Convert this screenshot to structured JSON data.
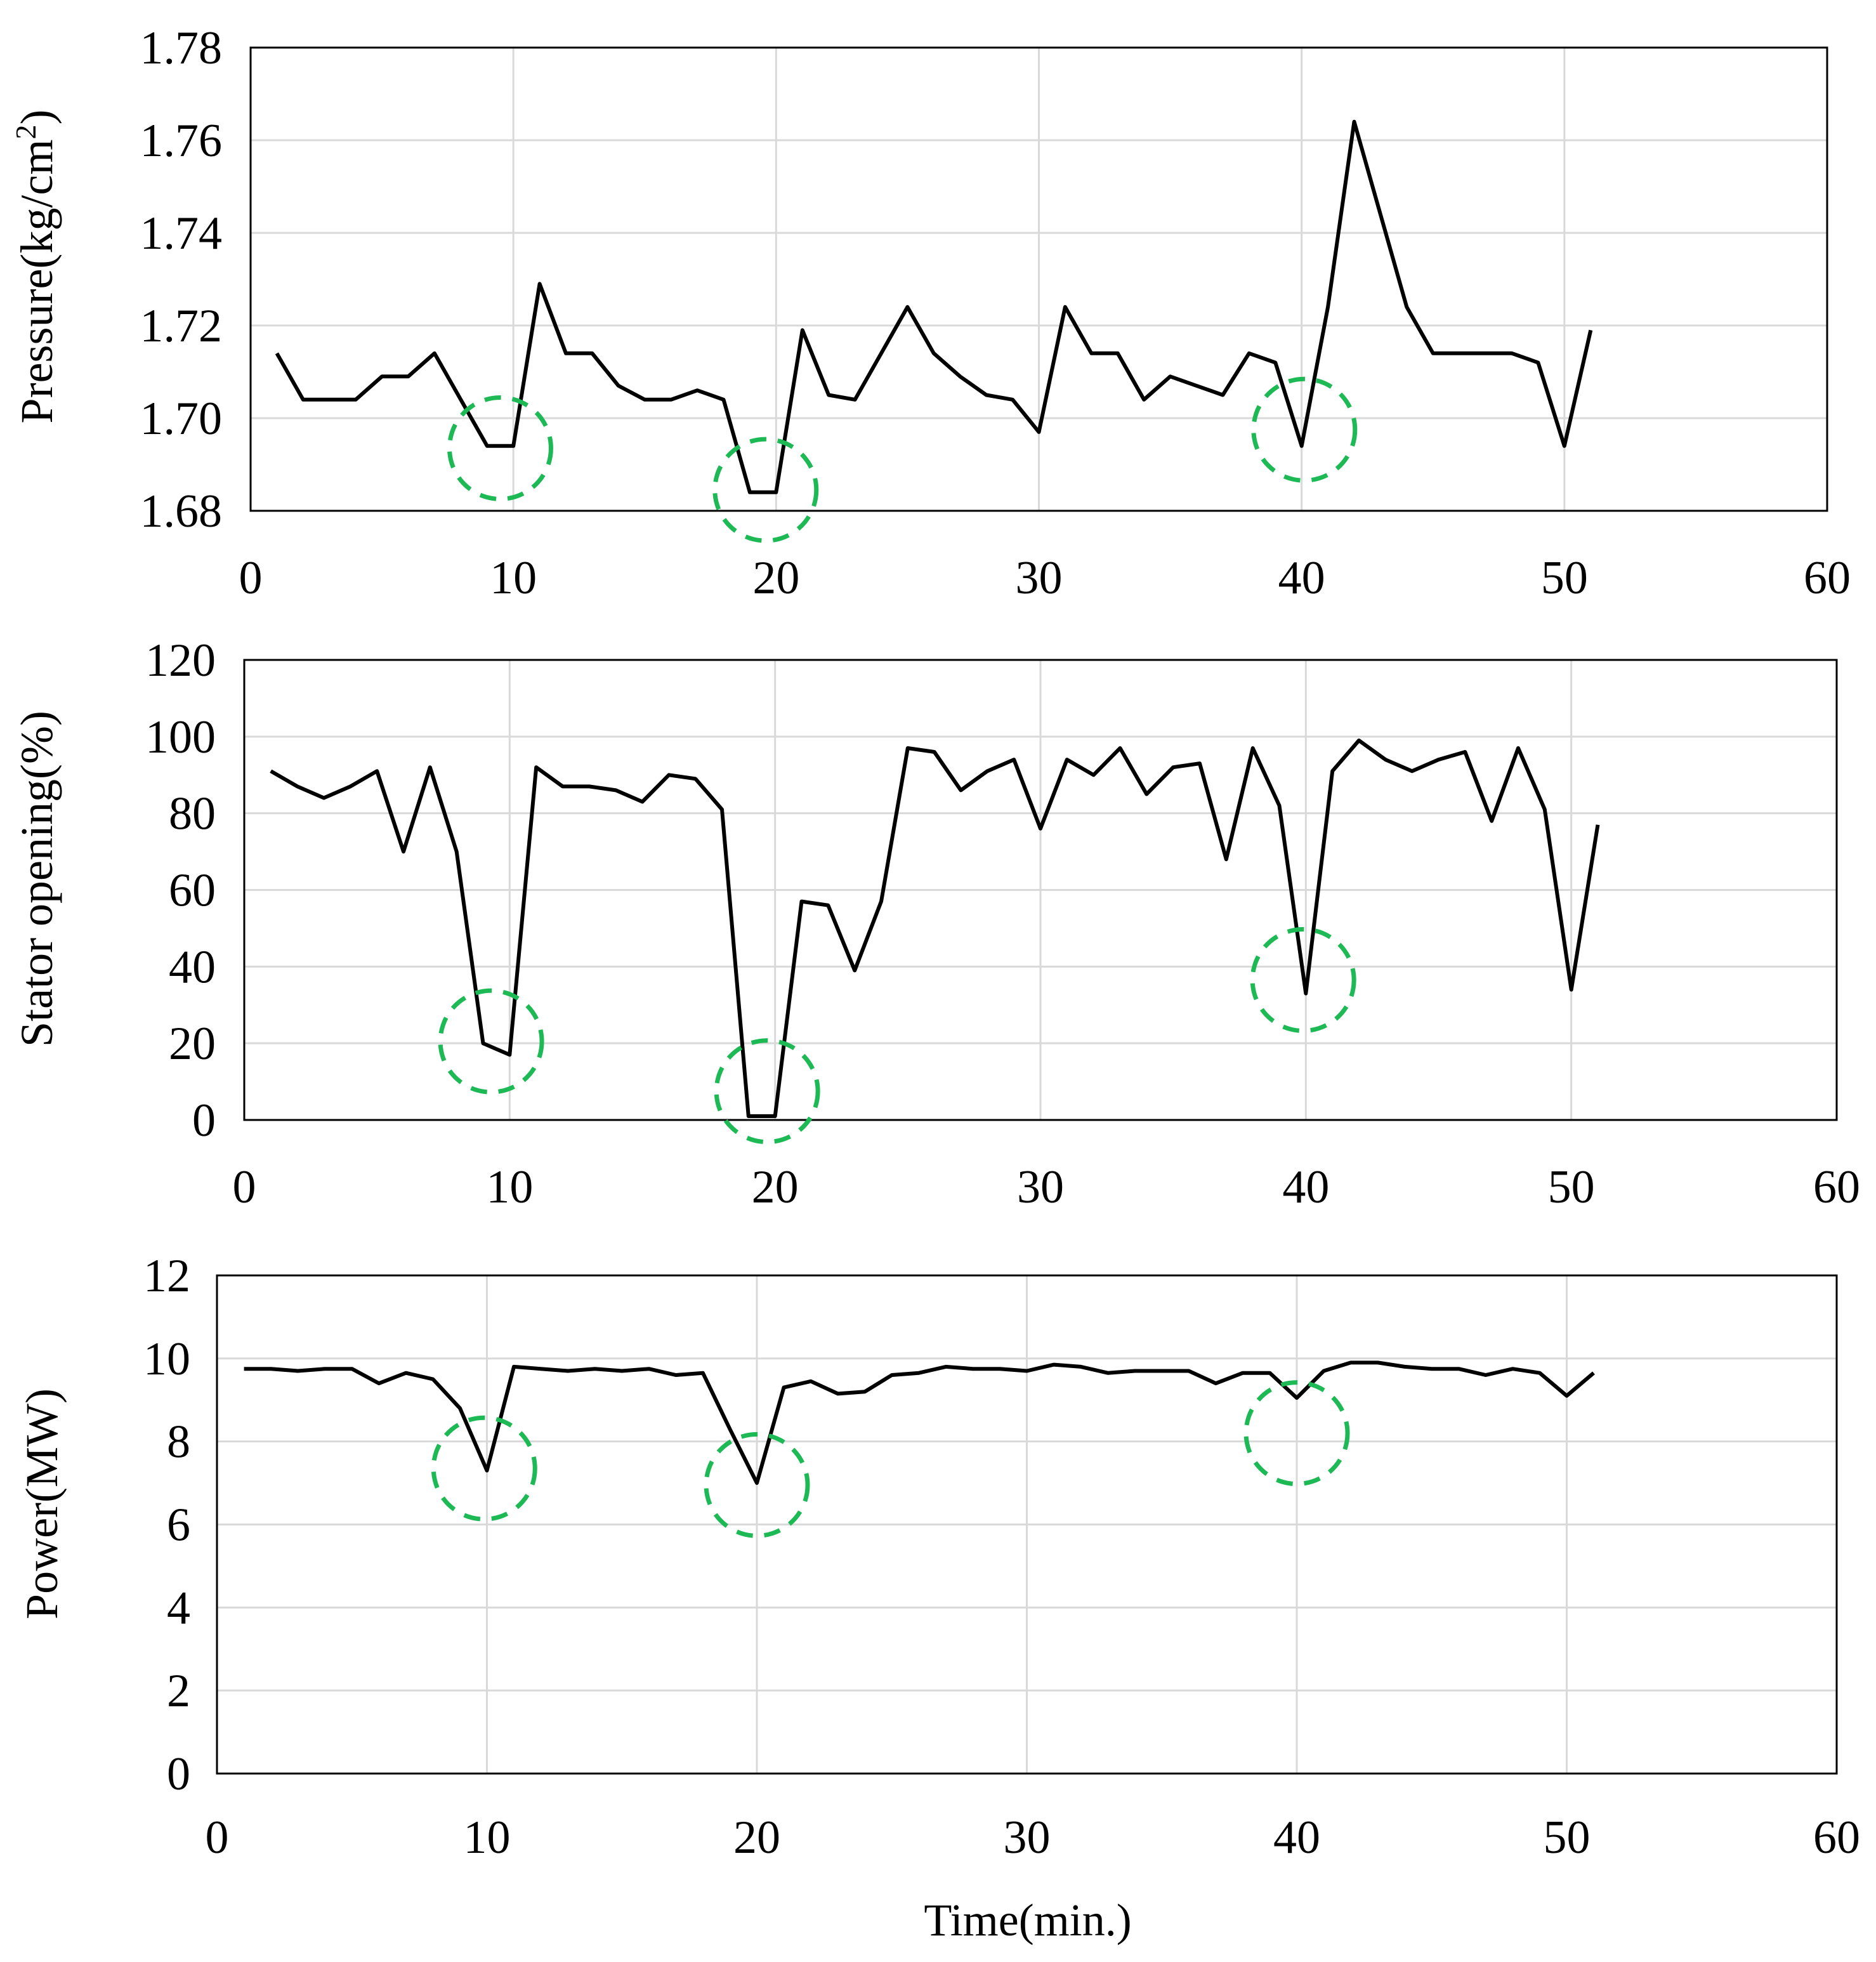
{
  "chart_data": [
    {
      "type": "line",
      "ylabel": "Pressure(kg/cm²)",
      "ylabel_main": "Pressure(kg/cm",
      "ylabel_sup": "2",
      "ylabel_end": ")",
      "xlabel": "",
      "xlim": [
        0,
        60
      ],
      "ylim": [
        1.68,
        1.78
      ],
      "xticks": [
        "0",
        "10",
        "20",
        "30",
        "40",
        "50",
        "60"
      ],
      "yticks": [
        "1.68",
        "1.70",
        "1.72",
        "1.74",
        "1.76",
        "1.78"
      ],
      "grid": true,
      "series": [
        {
          "name": "Pressure",
          "color": "#000000",
          "x": [
            1,
            2,
            3,
            4,
            5,
            6,
            7,
            8,
            9,
            10,
            11,
            12,
            13,
            14,
            15,
            16,
            17,
            18,
            19,
            20,
            21,
            22,
            23,
            24,
            25,
            26,
            27,
            28,
            29,
            30,
            31,
            32,
            33,
            34,
            35,
            36,
            37,
            38,
            39,
            40,
            41,
            42,
            43,
            44,
            45,
            46,
            47,
            48,
            49,
            50,
            51
          ],
          "values": [
            1.714,
            1.704,
            1.704,
            1.704,
            1.709,
            1.709,
            1.714,
            1.704,
            1.694,
            1.694,
            1.729,
            1.714,
            1.714,
            1.707,
            1.704,
            1.704,
            1.706,
            1.704,
            1.684,
            1.684,
            1.719,
            1.705,
            1.704,
            1.714,
            1.724,
            1.714,
            1.709,
            1.705,
            1.704,
            1.697,
            1.724,
            1.714,
            1.714,
            1.704,
            1.709,
            1.707,
            1.705,
            1.714,
            1.712,
            1.694,
            1.724,
            1.764,
            1.744,
            1.724,
            1.714,
            1.714,
            1.714,
            1.714,
            1.712,
            1.694,
            1.719
          ]
        }
      ],
      "annotations": [
        {
          "type": "dashed-circle",
          "color": "#1db954",
          "cx": 9.5,
          "cy": 1.6935
        },
        {
          "type": "dashed-circle",
          "color": "#1db954",
          "cx": 19.6,
          "cy": 1.6845
        },
        {
          "type": "dashed-circle",
          "color": "#1db954",
          "cx": 40.1,
          "cy": 1.6975
        }
      ]
    },
    {
      "type": "line",
      "ylabel": "Stator opening(%)",
      "xlabel": "",
      "xlim": [
        0,
        60
      ],
      "ylim": [
        0,
        120
      ],
      "xticks": [
        "0",
        "10",
        "20",
        "30",
        "40",
        "50",
        "60"
      ],
      "yticks": [
        "0",
        "20",
        "40",
        "60",
        "80",
        "100",
        "120"
      ],
      "grid": true,
      "series": [
        {
          "name": "Stator opening",
          "color": "#000000",
          "x": [
            1,
            2,
            3,
            4,
            5,
            6,
            7,
            8,
            9,
            10,
            11,
            12,
            13,
            14,
            15,
            16,
            17,
            18,
            19,
            20,
            21,
            22,
            23,
            24,
            25,
            26,
            27,
            28,
            29,
            30,
            31,
            32,
            33,
            34,
            35,
            36,
            37,
            38,
            39,
            40,
            41,
            42,
            43,
            44,
            45,
            46,
            47,
            48,
            49,
            50,
            51
          ],
          "values": [
            91,
            87,
            84,
            87,
            91,
            70,
            92,
            70,
            20,
            17,
            92,
            87,
            87,
            86,
            83,
            90,
            89,
            81,
            1,
            1,
            57,
            56,
            39,
            57,
            97,
            96,
            86,
            91,
            94,
            76,
            94,
            90,
            97,
            85,
            92,
            93,
            68,
            97,
            82,
            33,
            91,
            99,
            94,
            91,
            94,
            96,
            78,
            97,
            81,
            34,
            77
          ]
        }
      ],
      "annotations": [
        {
          "type": "dashed-circle",
          "color": "#1db954",
          "cx": 9.3,
          "cy": 20.5
        },
        {
          "type": "dashed-circle",
          "color": "#1db954",
          "cx": 19.7,
          "cy": 7.5
        },
        {
          "type": "dashed-circle",
          "color": "#1db954",
          "cx": 39.9,
          "cy": 36.5
        }
      ]
    },
    {
      "type": "line",
      "ylabel": "Power(MW)",
      "xlabel": "Time(min.)",
      "xlim": [
        0,
        60
      ],
      "ylim": [
        0,
        12
      ],
      "xticks": [
        "0",
        "10",
        "20",
        "30",
        "40",
        "50",
        "60"
      ],
      "yticks": [
        "0",
        "2",
        "4",
        "6",
        "8",
        "10",
        "12"
      ],
      "grid": true,
      "series": [
        {
          "name": "Power",
          "color": "#000000",
          "x": [
            1,
            2,
            3,
            4,
            5,
            6,
            7,
            8,
            9,
            10,
            11,
            12,
            13,
            14,
            15,
            16,
            17,
            18,
            19,
            20,
            21,
            22,
            23,
            24,
            25,
            26,
            27,
            28,
            29,
            30,
            31,
            32,
            33,
            34,
            35,
            36,
            37,
            38,
            39,
            40,
            41,
            42,
            43,
            44,
            45,
            46,
            47,
            48,
            49,
            50,
            51
          ],
          "values": [
            9.75,
            9.75,
            9.7,
            9.75,
            9.75,
            9.4,
            9.65,
            9.5,
            8.8,
            7.3,
            9.8,
            9.75,
            9.7,
            9.75,
            9.7,
            9.75,
            9.6,
            9.65,
            8.3,
            7.0,
            9.3,
            9.45,
            9.15,
            9.2,
            9.6,
            9.65,
            9.8,
            9.75,
            9.75,
            9.7,
            9.85,
            9.8,
            9.65,
            9.7,
            9.7,
            9.7,
            9.4,
            9.65,
            9.65,
            9.05,
            9.7,
            9.9,
            9.9,
            9.8,
            9.75,
            9.75,
            9.6,
            9.75,
            9.65,
            9.1,
            9.65
          ]
        }
      ],
      "annotations": [
        {
          "type": "dashed-circle",
          "color": "#1db954",
          "cx": 9.9,
          "cy": 7.35
        },
        {
          "type": "dashed-circle",
          "color": "#1db954",
          "cx": 20.0,
          "cy": 6.95
        },
        {
          "type": "dashed-circle",
          "color": "#1db954",
          "cx": 40.0,
          "cy": 8.2
        }
      ]
    }
  ]
}
